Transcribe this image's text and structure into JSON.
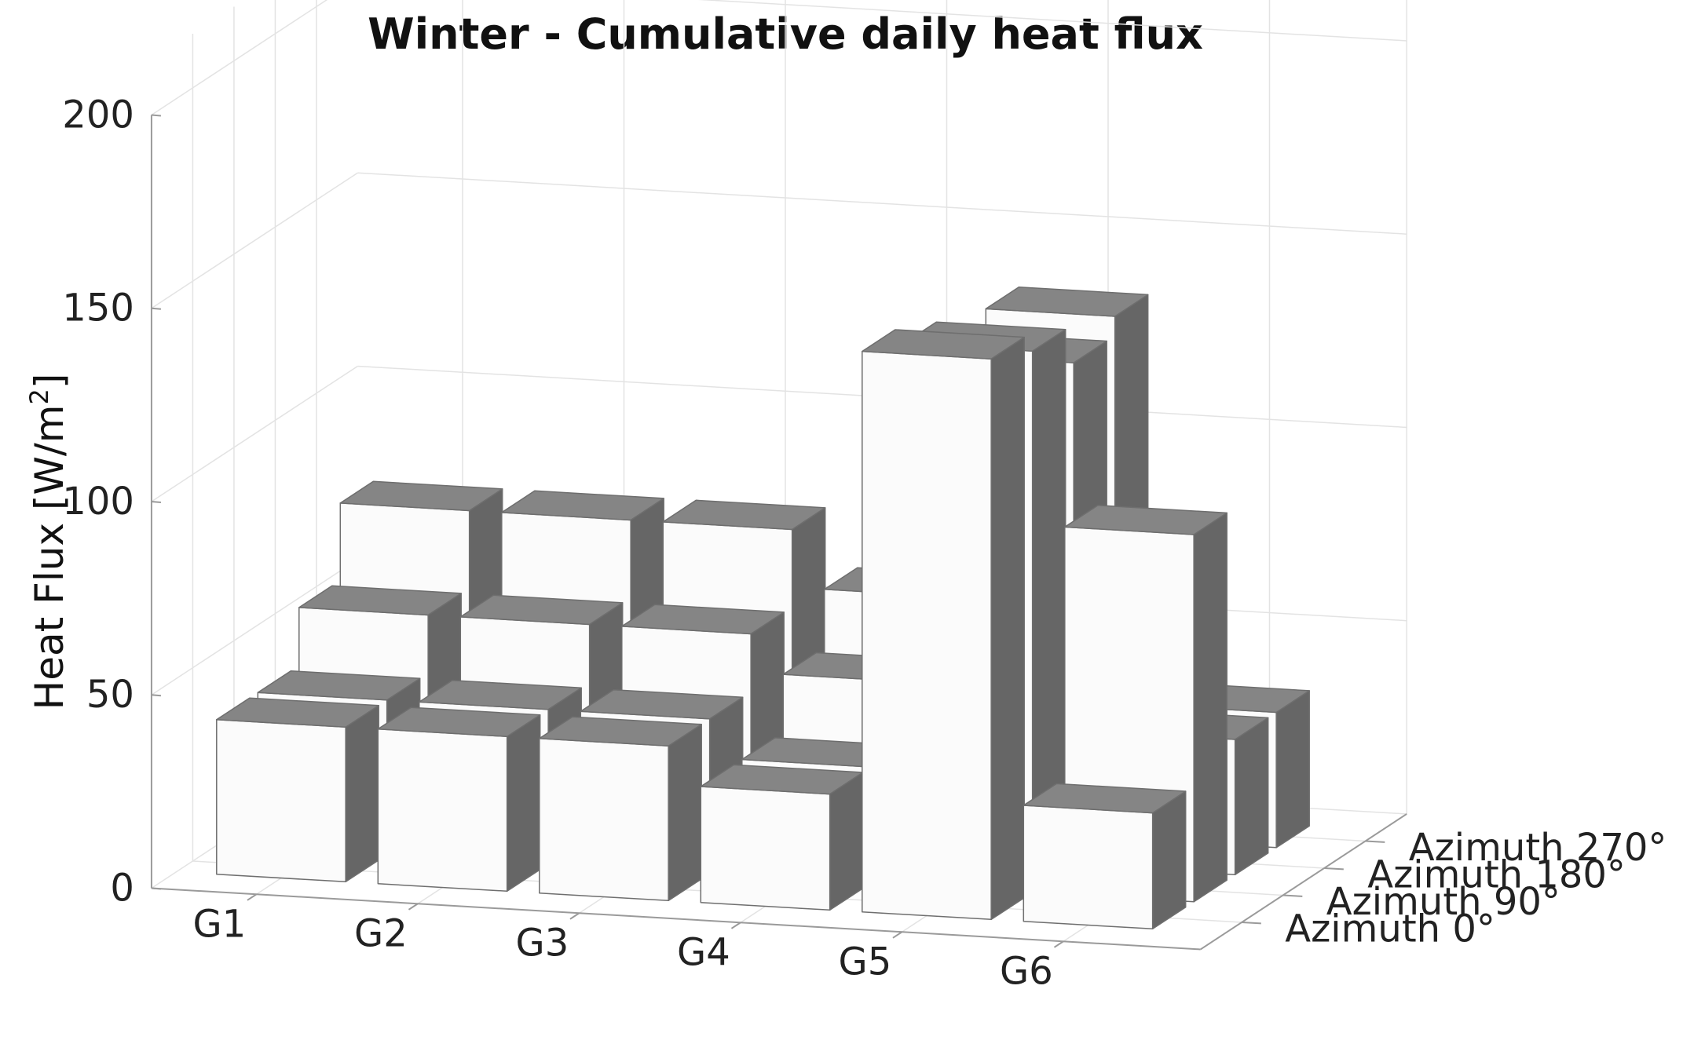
{
  "chart_data": {
    "type": "bar3d",
    "title": "Winter - Cumulative daily heat flux",
    "zlabel": "Heat Flux [W/m",
    "zlabel_sup": "2",
    "zlabel_end": "]",
    "zlim": [
      0,
      200
    ],
    "zticks": [
      0,
      50,
      100,
      150,
      200
    ],
    "categories": [
      "G1",
      "G2",
      "G3",
      "G4",
      "G5",
      "G6"
    ],
    "series": [
      {
        "name": "Azimuth 0°",
        "values": [
          40,
          40,
          40,
          30,
          145,
          30
        ]
      },
      {
        "name": "Azimuth 90°",
        "values": [
          40,
          40,
          40,
          30,
          140,
          95
        ]
      },
      {
        "name": "Azimuth 180°",
        "values": [
          55,
          55,
          55,
          45,
          130,
          35
        ]
      },
      {
        "name": "Azimuth 270°",
        "values": [
          75,
          75,
          75,
          60,
          135,
          35
        ]
      }
    ],
    "grid": true
  }
}
